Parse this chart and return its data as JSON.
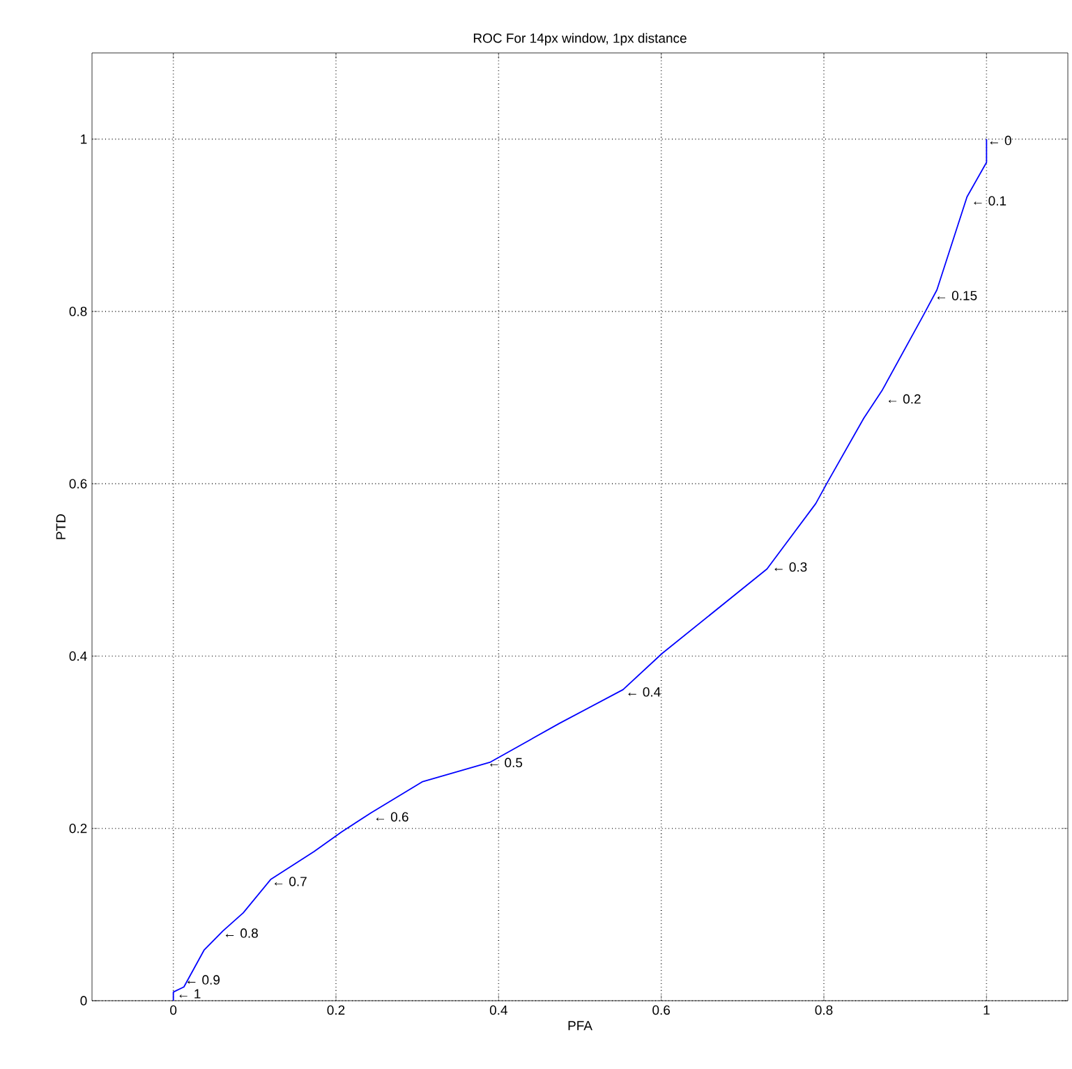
{
  "chart_data": {
    "type": "line",
    "title": "ROC For 14px window, 1px distance",
    "xlabel": "PFA",
    "ylabel": "PTD",
    "xlim": [
      -0.1,
      1.1
    ],
    "ylim": [
      0,
      1.1
    ],
    "xticks": [
      0,
      0.2,
      0.4,
      0.6,
      0.8,
      1
    ],
    "yticks": [
      0,
      0.2,
      0.4,
      0.6,
      0.8,
      1
    ],
    "grid": true,
    "series": [
      {
        "color": "#0000ff",
        "x": [
          0,
          0,
          0.013,
          0.038,
          0.061,
          0.086,
          0.12,
          0.173,
          0.207,
          0.243,
          0.306,
          0.39,
          0.475,
          0.553,
          0.601,
          0.73,
          0.79,
          0.804,
          0.849,
          0.872,
          0.922,
          0.939,
          0.976,
          1.0,
          1.0
        ],
        "values": [
          0,
          0.01,
          0.016,
          0.059,
          0.081,
          0.102,
          0.141,
          0.173,
          0.196,
          0.218,
          0.254,
          0.277,
          0.322,
          0.361,
          0.403,
          0.501,
          0.577,
          0.601,
          0.676,
          0.709,
          0.795,
          0.825,
          0.933,
          0.973,
          1.0
        ]
      }
    ],
    "annotations": [
      {
        "text": "← 1",
        "x": 0.003,
        "y": 0
      },
      {
        "text": "← 0.9",
        "x": 0.013,
        "y": 0.016
      },
      {
        "text": "← 0.8",
        "x": 0.06,
        "y": 0.08
      },
      {
        "text": "← 0.7",
        "x": 0.12,
        "y": 0.14
      },
      {
        "text": "← 0.6",
        "x": 0.245,
        "y": 0.215
      },
      {
        "text": "← 0.5",
        "x": 0.385,
        "y": 0.278
      },
      {
        "text": "← 0.4",
        "x": 0.555,
        "y": 0.36
      },
      {
        "text": "← 0.3",
        "x": 0.735,
        "y": 0.505
      },
      {
        "text": "← 0.2",
        "x": 0.875,
        "y": 0.7
      },
      {
        "text": "← 0.15",
        "x": 0.935,
        "y": 0.82
      },
      {
        "text": "← 0.1",
        "x": 0.98,
        "y": 0.93
      },
      {
        "text": "← 0",
        "x": 1.0,
        "y": 1.0
      }
    ]
  }
}
